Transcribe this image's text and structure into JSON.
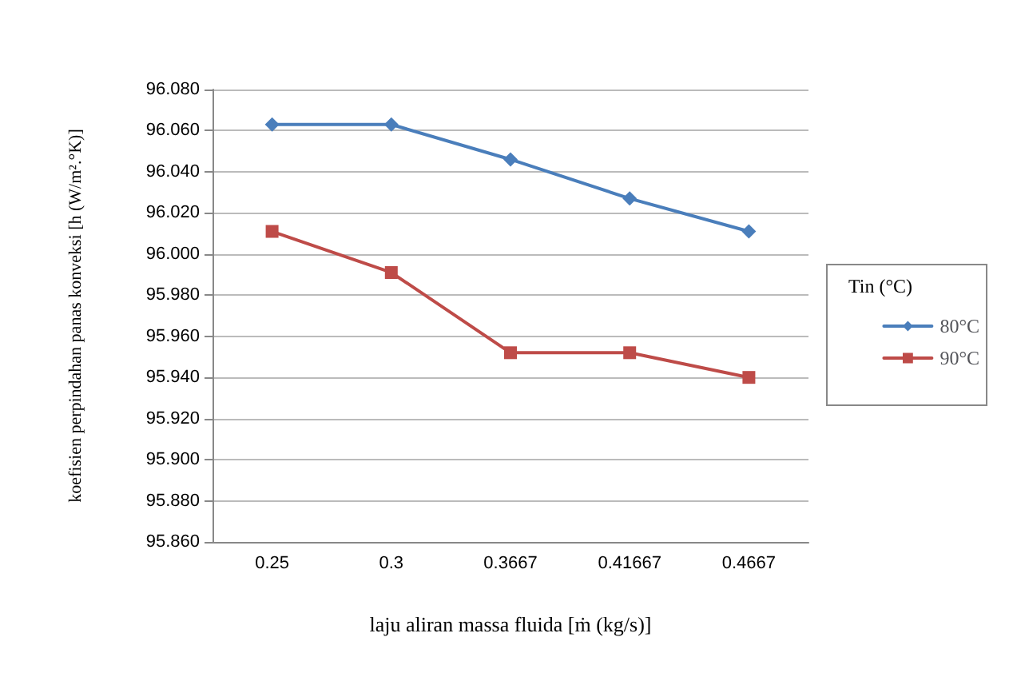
{
  "chart_data": {
    "type": "line",
    "xlabel": "laju aliran massa fluida [ṁ (kg/s)]",
    "ylabel": "koefisien perpindahan panas konveksi [h (W/m².°K)]",
    "legend_title": "Tin (°C)",
    "categories": [
      "0.25",
      "0.3",
      "0.3667",
      "0.41667",
      "0.4667"
    ],
    "series": [
      {
        "name": "80°C",
        "color": "#4a7ebb",
        "marker": "diamond",
        "values": [
          96.063,
          96.063,
          96.046,
          96.027,
          96.011
        ]
      },
      {
        "name": "90°C",
        "color": "#be4b48",
        "marker": "square",
        "values": [
          96.011,
          95.991,
          95.952,
          95.952,
          95.94
        ]
      }
    ],
    "ylim": [
      95.86,
      96.08
    ],
    "yticks": [
      {
        "value": 95.86,
        "label": "95.860"
      },
      {
        "value": 95.88,
        "label": "95.880"
      },
      {
        "value": 95.9,
        "label": "95.900"
      },
      {
        "value": 95.92,
        "label": "95.920"
      },
      {
        "value": 95.94,
        "label": "95.940"
      },
      {
        "value": 95.96,
        "label": "95.960"
      },
      {
        "value": 95.98,
        "label": "95.980"
      },
      {
        "value": 96,
        "label": "96.000"
      },
      {
        "value": 96.02,
        "label": "96.020"
      },
      {
        "value": 96.04,
        "label": "96.040"
      },
      {
        "value": 96.06,
        "label": "96.060"
      },
      {
        "value": 96.08,
        "label": "96.080"
      }
    ],
    "grid": "y",
    "legend": "right",
    "line_style": "solid"
  }
}
